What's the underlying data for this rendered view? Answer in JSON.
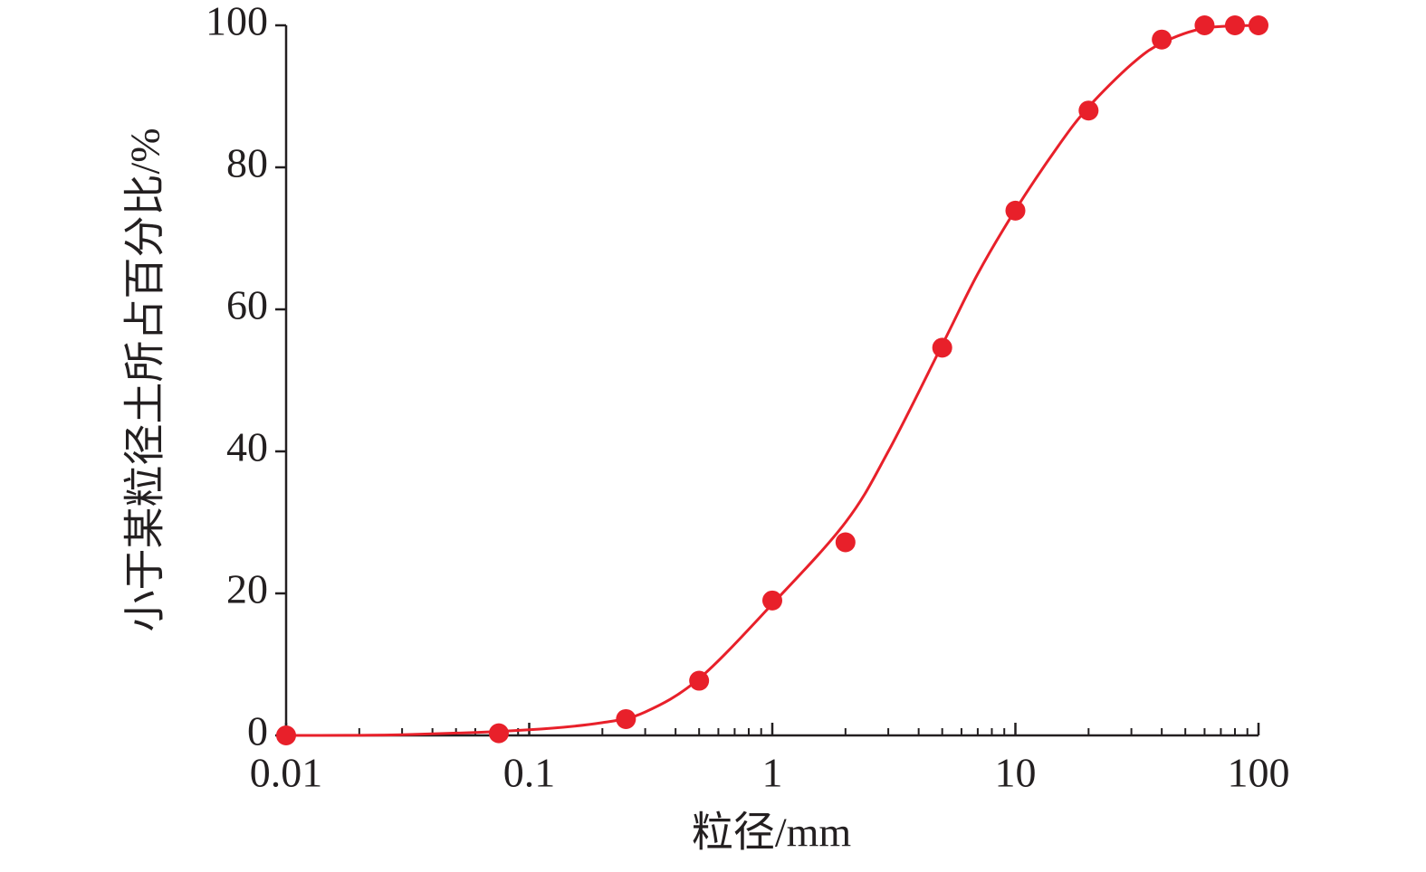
{
  "chart_data": {
    "type": "scatter",
    "x_label": "粒径/mm",
    "y_label": "小于某粒径土所占百分比/%",
    "xscale": "log",
    "xlim": [
      0.01,
      100
    ],
    "ylim": [
      0,
      100
    ],
    "xticks": [
      0.01,
      0.1,
      1,
      10,
      100
    ],
    "xminorticks": [
      0.02,
      0.03,
      0.04,
      0.05,
      0.06,
      0.07,
      0.08,
      0.09,
      0.2,
      0.3,
      0.4,
      0.5,
      0.6,
      0.7,
      0.8,
      0.9,
      2,
      3,
      4,
      5,
      6,
      7,
      8,
      9,
      20,
      30,
      40,
      50,
      60,
      70,
      80,
      90
    ],
    "yticks": [
      0,
      20,
      40,
      60,
      80,
      100
    ],
    "series": [
      {
        "type": "scatter",
        "color": "#e8202a",
        "x": [
          0.01,
          0.075,
          0.25,
          0.5,
          1,
          2,
          5,
          10,
          20,
          40,
          60,
          80,
          100
        ],
        "values": [
          0,
          0.3,
          2.3,
          7.7,
          19,
          27.2,
          54.6,
          73.9,
          88,
          98,
          100,
          100,
          100
        ]
      },
      {
        "type": "line",
        "color": "#e8202a",
        "x": [
          0.01,
          0.03,
          0.1,
          0.2,
          0.3,
          0.5,
          1,
          2,
          3,
          5,
          7,
          10,
          15,
          20,
          30,
          40,
          60,
          100
        ],
        "values": [
          0,
          0.1,
          0.8,
          1.8,
          3.3,
          8,
          18.5,
          30,
          40,
          55,
          65,
          74,
          83,
          88.5,
          94.5,
          97.5,
          99.6,
          100
        ]
      }
    ]
  }
}
